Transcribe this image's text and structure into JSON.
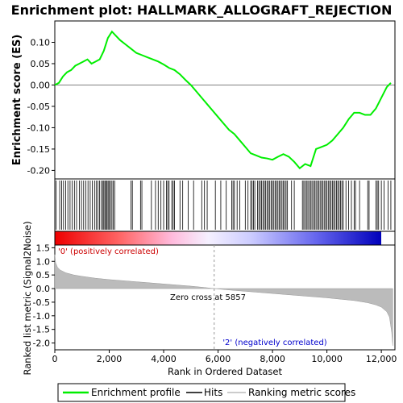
{
  "chart_data": [
    {
      "type": "line",
      "title": "Enrichment plot: HALLMARK_ALLOGRAFT_REJECTION",
      "ylabel": "Enrichment score (ES)",
      "xlim": [
        0,
        12500
      ],
      "ylim": [
        -0.22,
        0.15
      ],
      "yticks": [
        "0.10",
        "0.05",
        "0.00",
        "-0.05",
        "-0.10",
        "-0.15",
        "-0.20"
      ],
      "ytick_values": [
        0.1,
        0.05,
        0.0,
        -0.05,
        -0.1,
        -0.15,
        -0.2
      ],
      "grid": false,
      "series": [
        {
          "name": "Enrichment profile",
          "color": "#00ee00",
          "x": [
            0,
            150,
            300,
            450,
            600,
            750,
            900,
            1050,
            1200,
            1350,
            1500,
            1650,
            1800,
            1950,
            2100,
            2250,
            2400,
            2600,
            2800,
            3000,
            3200,
            3400,
            3600,
            3800,
            4000,
            4200,
            4400,
            4600,
            4800,
            5000,
            5200,
            5400,
            5600,
            5800,
            6000,
            6200,
            6400,
            6600,
            6800,
            7000,
            7200,
            7400,
            7600,
            7800,
            8000,
            8200,
            8400,
            8600,
            8800,
            9000,
            9200,
            9400,
            9600,
            9800,
            10000,
            10200,
            10400,
            10600,
            10800,
            11000,
            11200,
            11400,
            11600,
            11800,
            12000,
            12200,
            12350
          ],
          "y": [
            0.0,
            0.005,
            0.02,
            0.03,
            0.035,
            0.045,
            0.05,
            0.055,
            0.06,
            0.05,
            0.055,
            0.06,
            0.08,
            0.11,
            0.125,
            0.115,
            0.105,
            0.095,
            0.085,
            0.075,
            0.07,
            0.065,
            0.06,
            0.055,
            0.048,
            0.04,
            0.035,
            0.025,
            0.012,
            0.0,
            -0.015,
            -0.03,
            -0.045,
            -0.06,
            -0.075,
            -0.09,
            -0.105,
            -0.115,
            -0.13,
            -0.145,
            -0.16,
            -0.165,
            -0.17,
            -0.172,
            -0.175,
            -0.168,
            -0.162,
            -0.168,
            -0.18,
            -0.195,
            -0.185,
            -0.19,
            -0.15,
            -0.145,
            -0.14,
            -0.13,
            -0.115,
            -0.1,
            -0.08,
            -0.065,
            -0.065,
            -0.07,
            -0.07,
            -0.055,
            -0.03,
            -0.005,
            0.005
          ]
        }
      ]
    },
    {
      "type": "bar",
      "xlim": [
        0,
        12500
      ],
      "series": [
        {
          "name": "Hits",
          "x": [
            50,
            180,
            250,
            320,
            400,
            480,
            560,
            640,
            720,
            800,
            900,
            980,
            1060,
            1140,
            1220,
            1300,
            1380,
            1460,
            1520,
            1580,
            1640,
            1700,
            1760,
            1800,
            1840,
            1880,
            1920,
            1960,
            2000,
            2050,
            2100,
            2150,
            2200,
            2800,
            2850,
            3150,
            3200,
            3550,
            3700,
            3800,
            3900,
            4000,
            4100,
            4150,
            4200,
            4300,
            4350,
            4400,
            4600,
            4700,
            4900,
            5100,
            5400,
            5500,
            5600,
            5900,
            6100,
            6300,
            6500,
            6550,
            6600,
            6700,
            6800,
            7000,
            7100,
            7200,
            7250,
            7300,
            7350,
            7450,
            7500,
            7550,
            7600,
            7650,
            7700,
            7750,
            7800,
            7850,
            7900,
            7950,
            8000,
            8050,
            8100,
            8150,
            8200,
            8250,
            8300,
            8350,
            8400,
            8450,
            8500,
            8550,
            8700,
            8800,
            9100,
            9150,
            9200,
            9250,
            9300,
            9350,
            9400,
            9450,
            9500,
            9550,
            9600,
            9650,
            9700,
            9750,
            9800,
            9850,
            9900,
            9950,
            10000,
            10050,
            10100,
            10150,
            10200,
            10250,
            10300,
            10350,
            10400,
            10450,
            10500,
            10550,
            10600,
            10700,
            10800,
            10900,
            11000,
            11050,
            11200,
            11500,
            11550,
            11800,
            11850,
            11900,
            12000,
            12100,
            12250,
            12350
          ]
        }
      ]
    },
    {
      "type": "area",
      "ylabel": "Ranked list metric (Signal2Noise)",
      "xlabel": "Rank in Ordered Dataset",
      "xlim": [
        0,
        12500
      ],
      "ylim": [
        -2.25,
        1.6
      ],
      "yticks": [
        "1.5",
        "1.0",
        "0.5",
        "0.0",
        "-0.5",
        "-1.0",
        "-1.5",
        "-2.0"
      ],
      "ytick_values": [
        1.5,
        1.0,
        0.5,
        0.0,
        -0.5,
        -1.0,
        -1.5,
        -2.0
      ],
      "xticks": [
        "0",
        "2,000",
        "4,000",
        "6,000",
        "8,000",
        "10,000",
        "12,000"
      ],
      "xtick_values": [
        0,
        2000,
        4000,
        6000,
        8000,
        10000,
        12000
      ],
      "series": [
        {
          "name": "Ranking metric scores",
          "x": [
            0,
            30,
            100,
            200,
            400,
            700,
            1000,
            1500,
            2000,
            2500,
            3000,
            3500,
            4000,
            4500,
            5000,
            5500,
            5857,
            6500,
            7000,
            7500,
            8000,
            8500,
            9000,
            9500,
            10000,
            10500,
            11000,
            11500,
            11800,
            12000,
            12200,
            12300,
            12380,
            12420
          ],
          "y": [
            1.25,
            0.95,
            0.78,
            0.68,
            0.58,
            0.5,
            0.45,
            0.38,
            0.33,
            0.29,
            0.25,
            0.21,
            0.17,
            0.13,
            0.09,
            0.04,
            0.0,
            -0.06,
            -0.1,
            -0.14,
            -0.18,
            -0.22,
            -0.26,
            -0.3,
            -0.34,
            -0.39,
            -0.44,
            -0.52,
            -0.6,
            -0.68,
            -0.85,
            -1.05,
            -1.6,
            -2.1
          ]
        }
      ],
      "annotations": [
        {
          "text": "'0' (positively correlated)",
          "color": "#cc0000"
        },
        {
          "text": "Zero cross at 5857",
          "color": "#000000",
          "x": 5857
        },
        {
          "text": "'2' (negatively correlated)",
          "color": "#0000cc"
        }
      ]
    }
  ],
  "legend": {
    "placement": "bottom",
    "items": [
      {
        "label": "Enrichment profile",
        "color": "#00ee00"
      },
      {
        "label": "Hits",
        "color": "#000000"
      },
      {
        "label": "Ranking metric scores",
        "color": "#bbbbbb"
      }
    ]
  }
}
